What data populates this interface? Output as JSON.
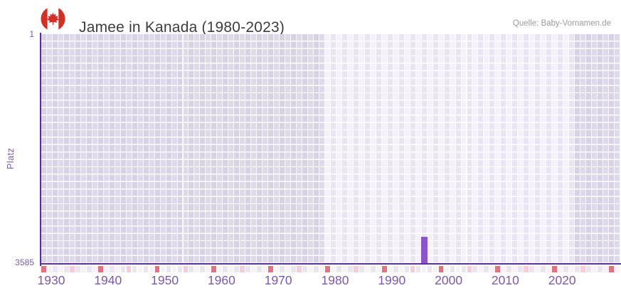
{
  "header": {
    "title": "Jamee in Kanada (1980-2023)",
    "source": "Quelle: Baby-Vornamen.de",
    "flag_icon": "canada-flag-icon"
  },
  "chart_data": {
    "type": "bar",
    "title": "Jamee in Kanada (1980-2023)",
    "xlabel": "",
    "ylabel": "Platz",
    "grid": true,
    "legend": false,
    "y_axis": {
      "top_label": "1",
      "bottom_label": "3585",
      "min": 1,
      "max": 3585,
      "inverted": true
    },
    "x_axis": {
      "tick_labels": [
        "1930",
        "1940",
        "1950",
        "1960",
        "1970",
        "1980",
        "1990",
        "2000",
        "2010",
        "2020"
      ],
      "visible_year_range": [
        1929,
        2031
      ],
      "decade_tick_years": [
        1930,
        1940,
        1950,
        1960,
        1970,
        1980,
        1990,
        2000,
        2010,
        2020,
        2030
      ],
      "mid_tick_years": [
        1935,
        1945,
        1955,
        1965,
        1975,
        1985,
        1995,
        2005,
        2015,
        2025
      ]
    },
    "data_period": {
      "start_year": 1980,
      "end_year": 2023
    },
    "series": [
      {
        "name": "Platz",
        "points": [
          {
            "year": 1997,
            "rank": 3170
          }
        ]
      }
    ],
    "colors": {
      "bar": "#8c54c6",
      "axis": "#5b2d91",
      "axis_x": "#5e3195",
      "label_purple": "#7c5ca6",
      "xlabel_purple": "#7e58ac",
      "title_gray": "#3d3d3d",
      "source_gray": "#9c9c9c",
      "cell_out_even": "#d8d2e4",
      "cell_out_odd": "#dfdaeb",
      "cell_in_even": "#f4f1fa",
      "cell_in_odd": "#eae5f3",
      "tick_decade": "#e0737f",
      "tick_mid": "#f3cdd9",
      "tick_even": "#ebe5f3",
      "tick_odd": "#f8f1f8",
      "flag_red": "#d22f27"
    }
  }
}
